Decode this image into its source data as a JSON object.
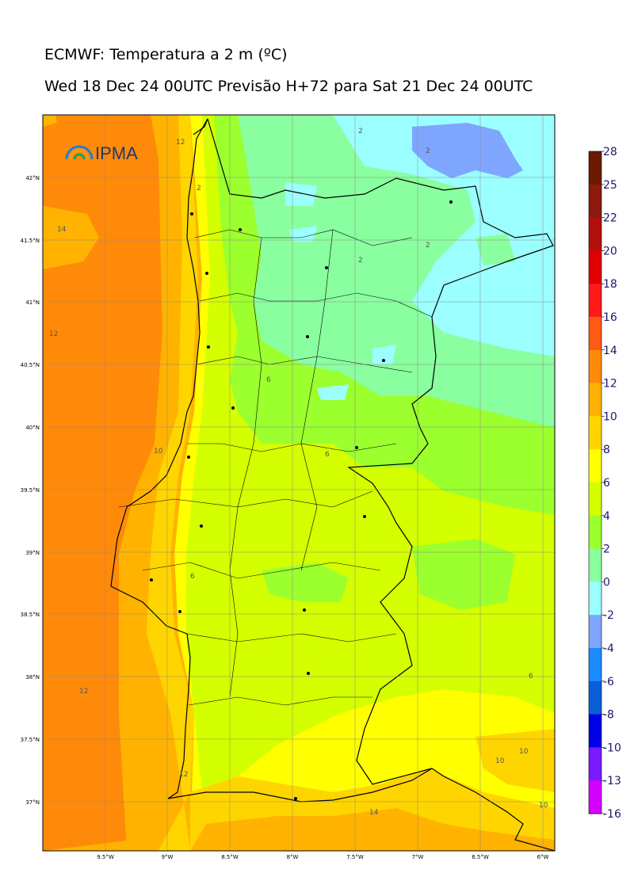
{
  "header": {
    "title": "ECMWF: Temperatura a 2 m (ºC)",
    "subtitle": "Wed 18 Dec 24 00UTC Previsão H+72 para Sat 21 Dec 24 00UTC"
  },
  "logo": {
    "text": "IPMA"
  },
  "axes": {
    "lat_labels": [
      "42°N",
      "41.5°N",
      "41°N",
      "40.5°N",
      "40°N",
      "39.5°N",
      "39°N",
      "38.5°N",
      "38°N",
      "37.5°N",
      "37°N"
    ],
    "lon_labels": [
      "9.5°W",
      "9°W",
      "8.5°W",
      "8°W",
      "7.5°W",
      "7°W",
      "6.5°W",
      "6°W"
    ]
  },
  "colorbar": {
    "labels": [
      "28",
      "25",
      "22",
      "20",
      "18",
      "16",
      "14",
      "12",
      "10",
      "8",
      "6",
      "4",
      "2",
      "0",
      "-2",
      "-4",
      "-6",
      "-8",
      "-10",
      "-13",
      "-16"
    ],
    "colors": [
      "#6b1a00",
      "#8c1a0d",
      "#b30f0f",
      "#e00000",
      "#ff1a1a",
      "#ff5a14",
      "#ff8a0a",
      "#ffb300",
      "#ffd500",
      "#ffff00",
      "#d4ff00",
      "#9cff2e",
      "#8affa0",
      "#9cffff",
      "#7fa6ff",
      "#1a8cff",
      "#0a5fd9",
      "#0000e6",
      "#7a1aff",
      "#d400ff"
    ]
  },
  "contour_labels": [
    {
      "text": "2"
    },
    {
      "text": "2"
    },
    {
      "text": "2"
    },
    {
      "text": "2"
    },
    {
      "text": "2"
    },
    {
      "text": "6"
    },
    {
      "text": "6"
    },
    {
      "text": "6"
    },
    {
      "text": "6"
    },
    {
      "text": "10"
    },
    {
      "text": "10"
    },
    {
      "text": "10"
    },
    {
      "text": "10"
    },
    {
      "text": "12"
    },
    {
      "text": "12"
    },
    {
      "text": "12"
    },
    {
      "text": "12"
    },
    {
      "text": "14"
    },
    {
      "text": "14"
    }
  ]
}
